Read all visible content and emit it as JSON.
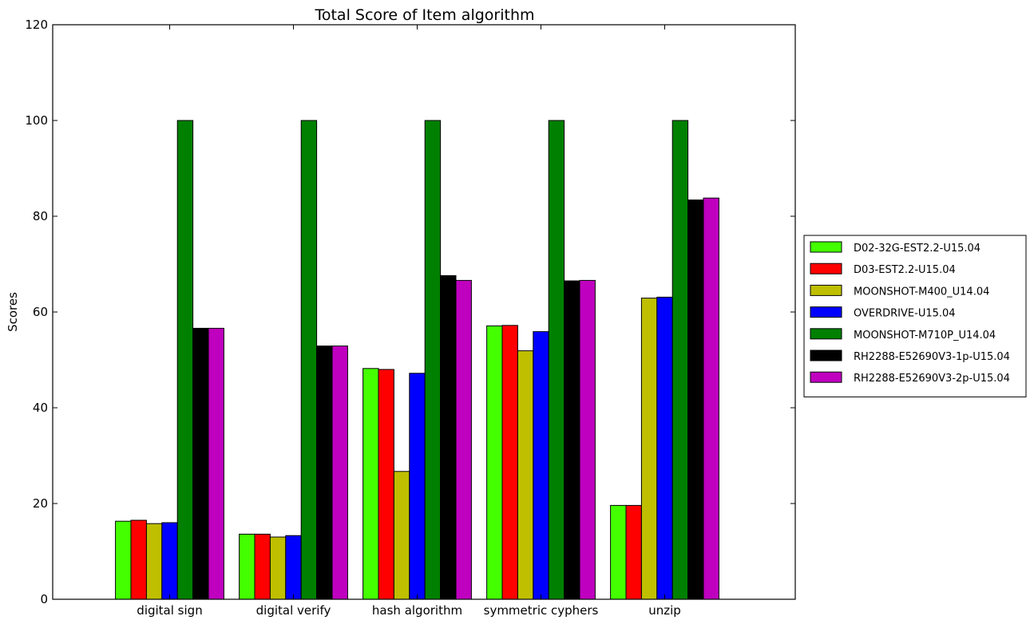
{
  "chart_data": {
    "type": "bar",
    "title": "Total Score of Item algorithm",
    "xlabel": "",
    "ylabel": "Scores",
    "ylim": [
      0,
      120
    ],
    "yticks": [
      0,
      20,
      40,
      60,
      80,
      100,
      120
    ],
    "grid": false,
    "legend_position": "right",
    "categories": [
      "digital sign",
      "digital verify",
      "hash algorithm",
      "symmetric cyphers",
      "unzip"
    ],
    "series": [
      {
        "name": "D02-32G-EST2.2-U15.04",
        "color": "#44ff00",
        "values": [
          16.3,
          13.6,
          48.2,
          57.1,
          19.6
        ]
      },
      {
        "name": "D03-EST2.2-U15.04",
        "color": "#ff0000",
        "values": [
          16.5,
          13.6,
          48.0,
          57.2,
          19.6
        ]
      },
      {
        "name": "MOONSHOT-M400_U14.04",
        "color": "#bfbf00",
        "values": [
          15.8,
          13.0,
          26.7,
          51.9,
          62.9
        ]
      },
      {
        "name": "OVERDRIVE-U15.04",
        "color": "#0000ff",
        "values": [
          16.0,
          13.3,
          47.2,
          55.9,
          63.1
        ]
      },
      {
        "name": "MOONSHOT-M710P_U14.04",
        "color": "#008000",
        "values": [
          100,
          100,
          100,
          100,
          100
        ]
      },
      {
        "name": "RH2288-E52690V3-1p-U15.04",
        "color": "#000000",
        "values": [
          56.6,
          52.9,
          67.6,
          66.5,
          83.4
        ]
      },
      {
        "name": "RH2288-E52690V3-2p-U15.04",
        "color": "#bf00bf",
        "values": [
          56.6,
          52.9,
          66.6,
          66.6,
          83.8
        ]
      }
    ]
  }
}
